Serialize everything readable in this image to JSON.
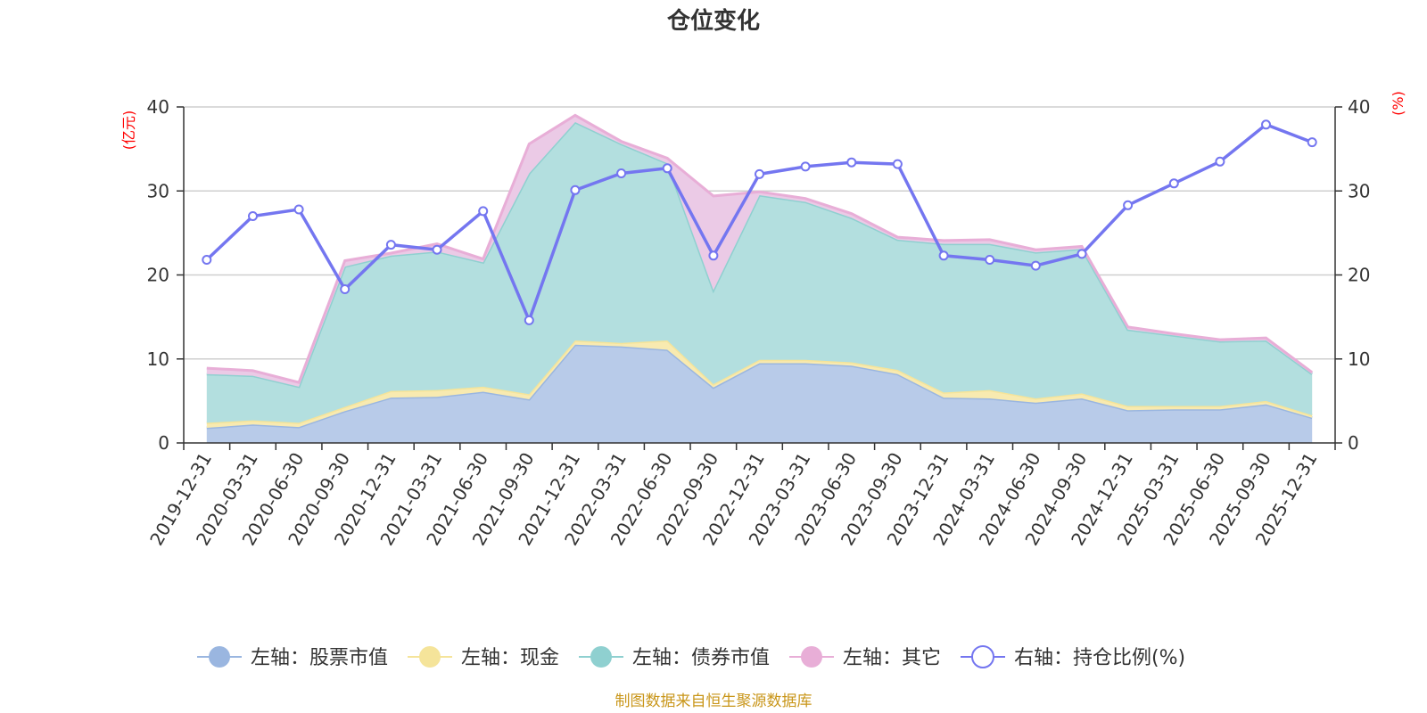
{
  "chart_data": {
    "type": "area",
    "title": "仓位变化",
    "source_note": "制图数据来自恒生聚源数据库",
    "left_axis": {
      "unit_label": "(亿元)",
      "ylim": [
        0,
        40
      ],
      "ticks": [
        "0",
        "10",
        "20",
        "30",
        "40"
      ]
    },
    "right_axis": {
      "unit_label": "(%)",
      "ylim": [
        0,
        40
      ],
      "ticks": [
        "0",
        "10",
        "20",
        "30",
        "40"
      ]
    },
    "grid": true,
    "legend_position": "bottom",
    "categories": [
      "2019-12-31",
      "2020-03-31",
      "2020-06-30",
      "2020-09-30",
      "2020-12-31",
      "2021-03-31",
      "2021-06-30",
      "2021-09-30",
      "2021-12-31",
      "2022-03-31",
      "2022-06-30",
      "2022-09-30",
      "2022-12-31",
      "2023-03-31",
      "2023-06-30",
      "2023-09-30",
      "2023-12-31",
      "2024-03-31",
      "2024-06-30",
      "2024-09-30",
      "2024-12-31",
      "2025-03-31",
      "2025-06-30",
      "2025-09-30",
      "2025-12-31"
    ],
    "series": [
      {
        "name": "左轴：股票市值",
        "axis": "left",
        "kind": "stacked-area",
        "color": "#9ab6e0",
        "fill": "#b8cbe9",
        "values": [
          1.8,
          2.2,
          1.9,
          3.8,
          5.4,
          5.5,
          6.1,
          5.2,
          11.7,
          11.5,
          11.1,
          6.6,
          9.5,
          9.5,
          9.2,
          8.2,
          5.4,
          5.3,
          4.8,
          5.3,
          3.9,
          4.0,
          4.0,
          4.6,
          3.0
        ]
      },
      {
        "name": "左轴：现金",
        "axis": "left",
        "kind": "stacked-area",
        "color": "#f5e49a",
        "fill": "#f8eab0",
        "values": [
          0.6,
          0.5,
          0.5,
          0.5,
          0.8,
          0.8,
          0.6,
          0.6,
          0.5,
          0.4,
          1.1,
          0.4,
          0.4,
          0.4,
          0.4,
          0.5,
          0.6,
          1.0,
          0.5,
          0.6,
          0.5,
          0.4,
          0.4,
          0.4,
          0.3
        ]
      },
      {
        "name": "左轴：债券市值",
        "axis": "left",
        "kind": "stacked-area",
        "color": "#8fd0d0",
        "fill": "#b3dfdf",
        "values": [
          5.8,
          5.3,
          4.3,
          16.7,
          16.1,
          16.5,
          14.8,
          26.3,
          26.0,
          23.7,
          21.1,
          11.2,
          19.6,
          18.8,
          17.2,
          15.5,
          17.7,
          17.4,
          17.4,
          17.2,
          9.1,
          8.4,
          7.7,
          7.2,
          4.9
        ]
      },
      {
        "name": "左轴：其它",
        "axis": "left",
        "kind": "stacked-area",
        "color": "#e8aed7",
        "fill": "#ebcae6",
        "values": [
          0.7,
          0.6,
          0.5,
          0.7,
          0.3,
          0.9,
          0.4,
          3.5,
          0.8,
          0.3,
          0.6,
          11.2,
          0.4,
          0.4,
          0.5,
          0.3,
          0.4,
          0.5,
          0.3,
          0.3,
          0.3,
          0.2,
          0.2,
          0.3,
          0.2
        ]
      },
      {
        "name": "右轴：持仓比例(%)",
        "axis": "right",
        "kind": "line",
        "color": "#7476f0",
        "values": [
          21.8,
          27.0,
          27.8,
          18.3,
          23.6,
          23.0,
          27.6,
          14.6,
          30.1,
          32.1,
          32.7,
          22.3,
          32.0,
          32.9,
          33.4,
          33.2,
          22.3,
          21.8,
          21.1,
          22.5,
          28.3,
          30.9,
          33.5,
          37.9,
          35.8
        ]
      }
    ]
  }
}
